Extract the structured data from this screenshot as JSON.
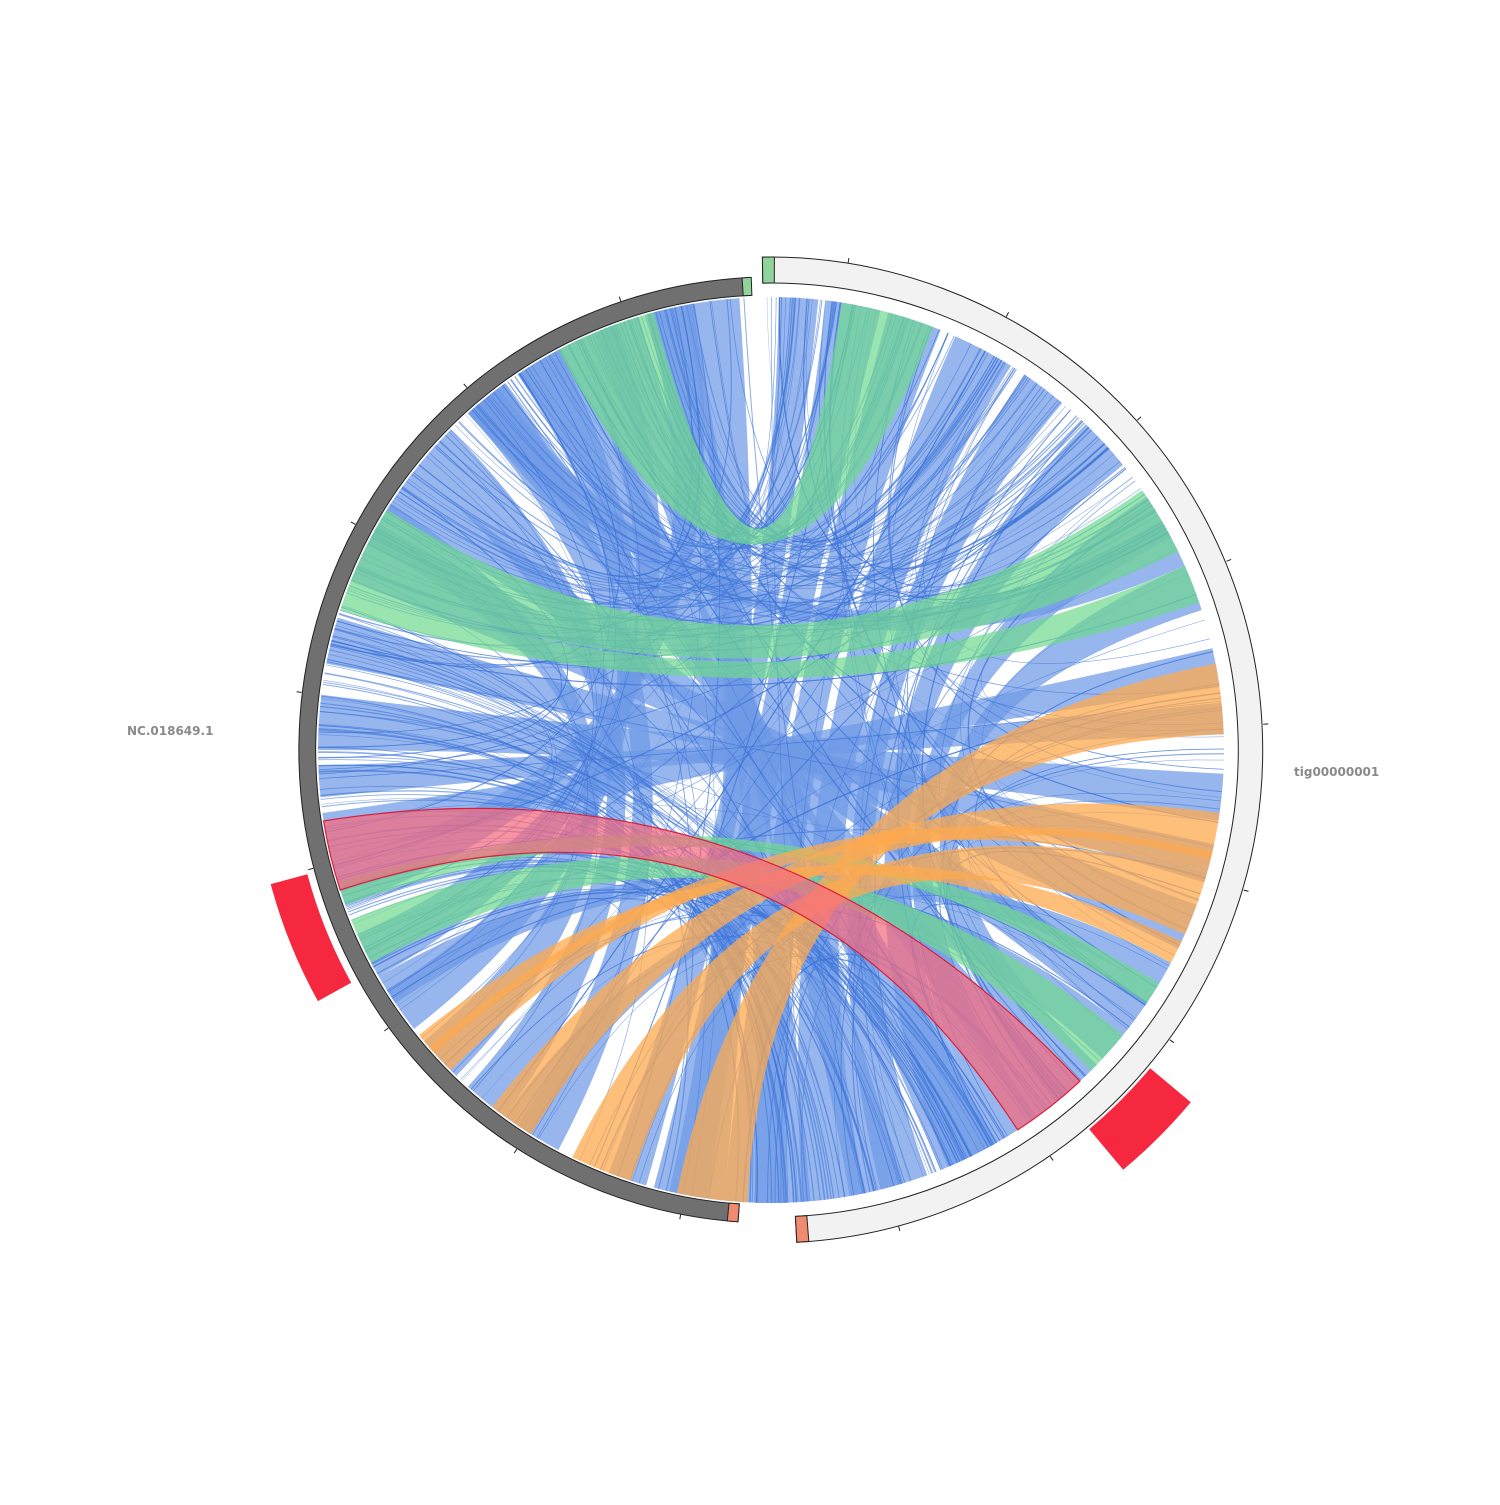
{
  "sequences": [
    {
      "name": "NC.018649.1",
      "fill": "#707070"
    },
    {
      "name": "tig00000001",
      "fill": "#f2f2f2"
    }
  ],
  "colors": {
    "blue": "#6f9ae6",
    "blue_line": "#3e74d8",
    "green": "#6fd88e",
    "orange": "#fdaa4f",
    "red": "#f56a7e",
    "red_line": "#d9203b",
    "highlight": "#f5283f",
    "start_marker": "#8fd49a",
    "end_marker": "#f08a70"
  },
  "icons": {
    "ticks": "tick-marks",
    "highlight": "highlight-block"
  }
}
